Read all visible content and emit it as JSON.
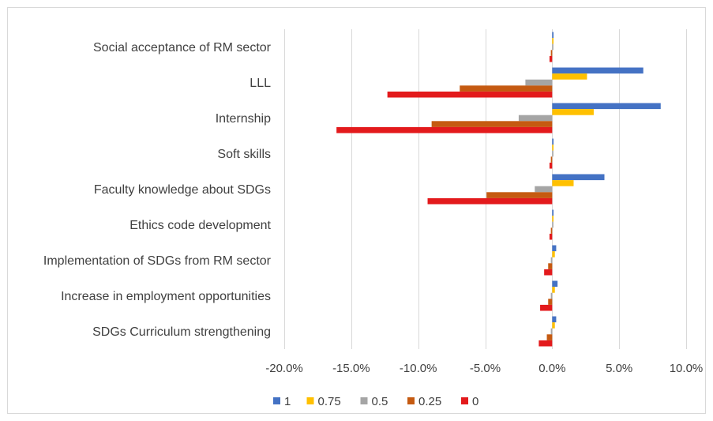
{
  "chart_data": {
    "type": "bar",
    "orientation": "horizontal",
    "title": "",
    "xlabel": "",
    "ylabel": "",
    "xlim": [
      -0.2,
      0.1
    ],
    "x_ticks": [
      -0.2,
      -0.15,
      -0.1,
      -0.05,
      0.0,
      0.05,
      0.1
    ],
    "x_tick_labels": [
      "-20.0%",
      "-15.0%",
      "-10.0%",
      "-5.0%",
      "0.0%",
      "5.0%",
      "10.0%"
    ],
    "grid": "vertical",
    "legend_position": "bottom",
    "categories": [
      "Social acceptance of RM sector",
      "LLL",
      "Internship",
      "Soft skills",
      "Faculty knowledge about SDGs",
      "Ethics code development",
      "Implementation of SDGs from RM sector",
      "Increase in employment opportunities",
      "SDGs Curriculum strengthening"
    ],
    "series": [
      {
        "name": "1",
        "color": "#4472c4",
        "values": [
          0.001,
          0.068,
          0.081,
          0.001,
          0.039,
          0.001,
          0.003,
          0.004,
          0.003
        ]
      },
      {
        "name": "0.75",
        "color": "#ffc000",
        "values": [
          0.001,
          0.026,
          0.031,
          0.001,
          0.016,
          0.001,
          0.002,
          0.002,
          0.002
        ]
      },
      {
        "name": "0.5",
        "color": "#a5a5a5",
        "values": [
          0.0,
          -0.02,
          -0.025,
          0.0,
          -0.013,
          0.0,
          -0.001,
          -0.001,
          -0.001
        ]
      },
      {
        "name": "0.25",
        "color": "#c55a11",
        "values": [
          -0.001,
          -0.069,
          -0.09,
          -0.001,
          -0.049,
          -0.001,
          -0.003,
          -0.003,
          -0.004
        ]
      },
      {
        "name": "0",
        "color": "#e31a1c",
        "values": [
          -0.002,
          -0.123,
          -0.161,
          -0.002,
          -0.093,
          -0.002,
          -0.006,
          -0.009,
          -0.01
        ]
      }
    ]
  }
}
